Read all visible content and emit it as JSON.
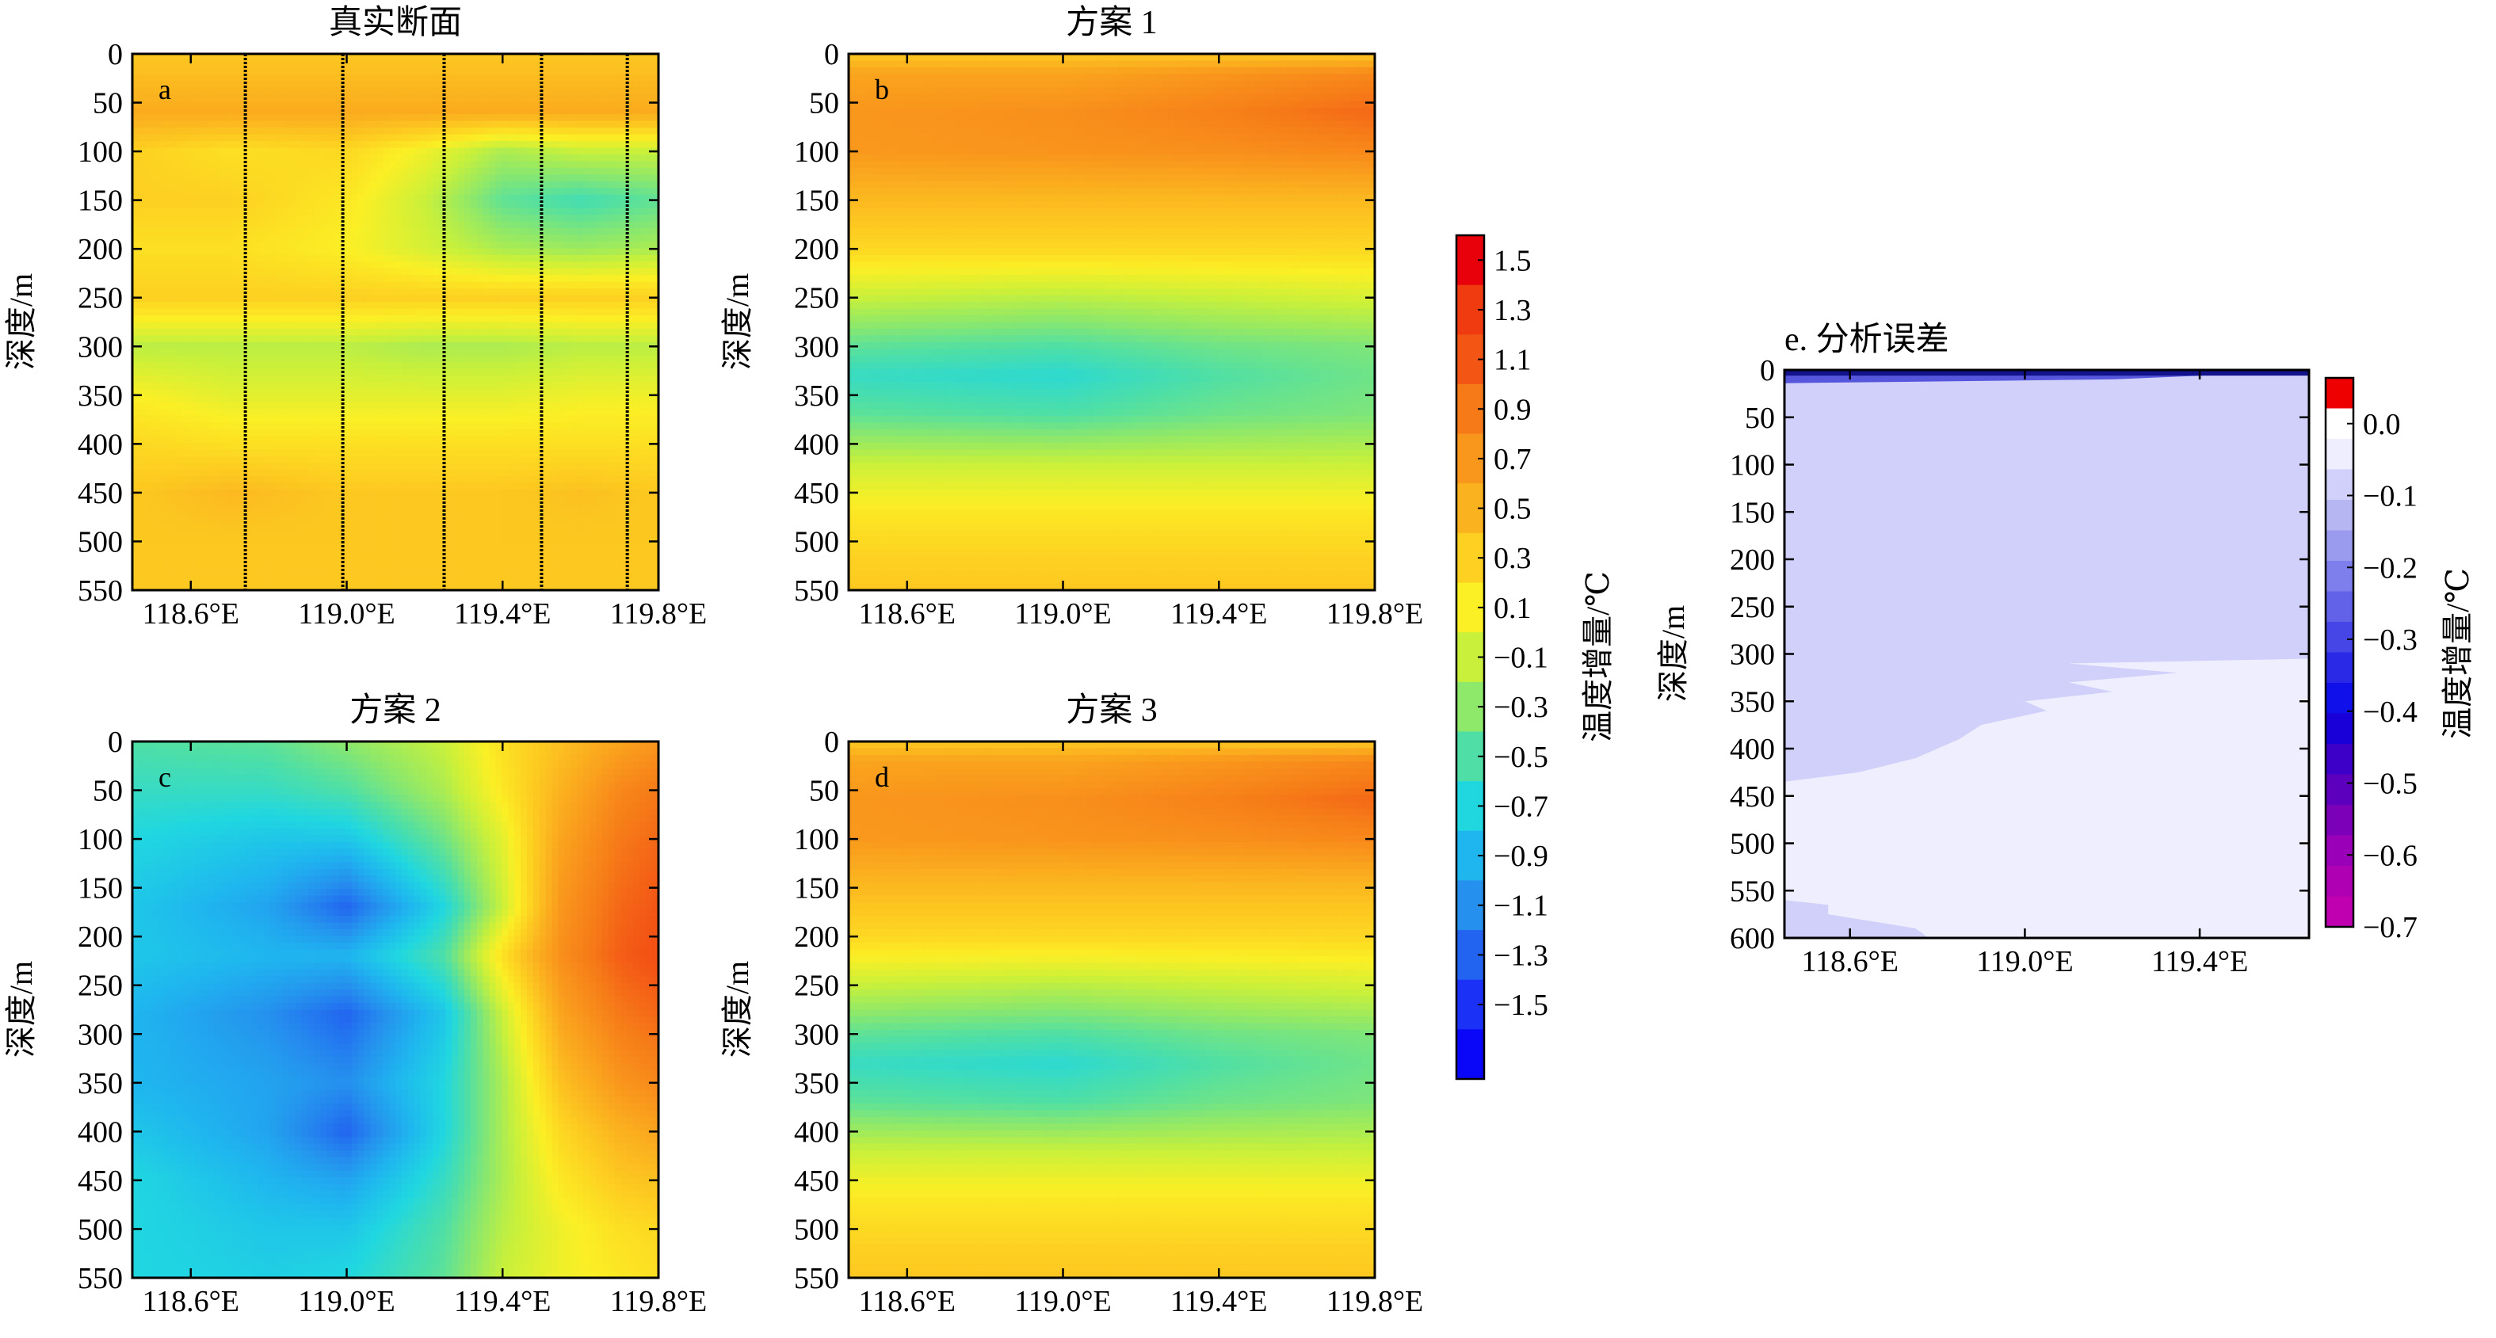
{
  "figure": {
    "colorbar_main": {
      "label": "温度增量/℃",
      "ticks": [
        "1.5",
        "1.3",
        "1.1",
        "0.9",
        "0.7",
        "0.5",
        "0.3",
        "0.1",
        "−0.1",
        "−0.3",
        "−0.5",
        "−0.7",
        "−0.9",
        "−1.1",
        "−1.3",
        "−1.5"
      ],
      "colors": [
        "#e8000b",
        "#f03a10",
        "#f35515",
        "#f67a18",
        "#f9961c",
        "#fbb21f",
        "#fdd021",
        "#fbef25",
        "#c9f03a",
        "#8ee86a",
        "#4fdfa6",
        "#20d7e0",
        "#1fb6ef",
        "#2590ee",
        "#2264f0",
        "#1b31f5",
        "#0a06f8"
      ]
    },
    "colorbar_err": {
      "label": "温度增量/℃",
      "ticks": [
        "0.0",
        "−0.1",
        "−0.2",
        "−0.3",
        "−0.4",
        "−0.5",
        "−0.6",
        "−0.7"
      ],
      "colors": [
        "#ee0000",
        "#ffffff",
        "#eeeeff",
        "#d0d0fa",
        "#b6b6f3",
        "#9a9aef",
        "#7e7eec",
        "#6262e8",
        "#4646e6",
        "#2a2ae6",
        "#1010ea",
        "#1a00d8",
        "#3c00c8",
        "#5c00be",
        "#7c00b8",
        "#9a00b8",
        "#b000b4",
        "#c000b0"
      ]
    }
  },
  "chart_data": [
    {
      "panel_letter": "a",
      "title": "真实断面",
      "type": "heatmap",
      "xlabel": "",
      "ylabel": "深度/m",
      "xlim": [
        118.45,
        119.8
      ],
      "ylim": [
        550,
        0
      ],
      "xticks": [
        "118.6°E",
        "119.0°E",
        "119.4°E",
        "119.8°E"
      ],
      "yticks": [
        "0",
        "50",
        "100",
        "150",
        "200",
        "250",
        "300",
        "350",
        "400",
        "450",
        "500",
        "550"
      ],
      "x": [
        118.45,
        118.7,
        119.0,
        119.2,
        119.4,
        119.6,
        119.8
      ],
      "depth": [
        0,
        30,
        60,
        100,
        150,
        200,
        250,
        300,
        350,
        400,
        450,
        500,
        550
      ],
      "values": [
        [
          0.45,
          0.45,
          0.45,
          0.45,
          0.45,
          0.45,
          0.45
        ],
        [
          0.55,
          0.55,
          0.55,
          0.55,
          0.55,
          0.55,
          0.55
        ],
        [
          0.65,
          0.65,
          0.65,
          0.65,
          0.65,
          0.65,
          0.65
        ],
        [
          0.4,
          0.3,
          0.35,
          0.15,
          -0.1,
          0.0,
          0.0
        ],
        [
          0.4,
          0.4,
          0.25,
          0.0,
          -0.35,
          -0.45,
          -0.35
        ],
        [
          0.3,
          0.3,
          0.2,
          0.05,
          -0.1,
          -0.15,
          -0.1
        ],
        [
          0.4,
          0.4,
          0.4,
          0.4,
          0.4,
          0.4,
          0.4
        ],
        [
          -0.05,
          -0.05,
          -0.05,
          -0.1,
          -0.1,
          -0.05,
          -0.05
        ],
        [
          0.2,
          0.1,
          0.1,
          0.1,
          0.1,
          0.15,
          0.15
        ],
        [
          0.35,
          0.3,
          0.3,
          0.3,
          0.3,
          0.3,
          0.3
        ],
        [
          0.45,
          0.55,
          0.45,
          0.45,
          0.45,
          0.5,
          0.45
        ],
        [
          0.45,
          0.45,
          0.45,
          0.45,
          0.45,
          0.45,
          0.45
        ],
        [
          0.45,
          0.45,
          0.45,
          0.45,
          0.45,
          0.45,
          0.45
        ]
      ],
      "observation_lines_lon": [
        118.74,
        118.99,
        119.25,
        119.5,
        119.72
      ]
    },
    {
      "panel_letter": "b",
      "title": "方案 1",
      "type": "heatmap",
      "xlabel": "",
      "ylabel": "深度/m",
      "xlim": [
        118.45,
        119.8
      ],
      "ylim": [
        550,
        0
      ],
      "xticks": [
        "118.6°E",
        "119.0°E",
        "119.4°E",
        "119.8°E"
      ],
      "yticks": [
        "0",
        "50",
        "100",
        "150",
        "200",
        "250",
        "300",
        "350",
        "400",
        "450",
        "500",
        "550"
      ],
      "x": [
        118.45,
        119.0,
        119.4,
        119.8
      ],
      "depth": [
        0,
        20,
        60,
        100,
        150,
        200,
        250,
        300,
        330,
        370,
        420,
        470,
        520,
        550
      ],
      "values": [
        [
          0.45,
          0.45,
          0.45,
          0.45
        ],
        [
          0.7,
          0.7,
          0.8,
          0.9
        ],
        [
          0.8,
          0.85,
          0.95,
          1.1
        ],
        [
          0.78,
          0.82,
          0.85,
          0.9
        ],
        [
          0.55,
          0.55,
          0.55,
          0.55
        ],
        [
          0.35,
          0.35,
          0.35,
          0.35
        ],
        [
          0.0,
          -0.05,
          0.0,
          0.05
        ],
        [
          -0.35,
          -0.4,
          -0.3,
          -0.25
        ],
        [
          -0.5,
          -0.55,
          -0.4,
          -0.3
        ],
        [
          -0.35,
          -0.4,
          -0.3,
          -0.25
        ],
        [
          0.0,
          0.0,
          0.0,
          0.0
        ],
        [
          0.25,
          0.25,
          0.25,
          0.25
        ],
        [
          0.4,
          0.4,
          0.4,
          0.4
        ],
        [
          0.45,
          0.45,
          0.45,
          0.45
        ]
      ]
    },
    {
      "panel_letter": "c",
      "title": "方案 2",
      "type": "heatmap",
      "xlabel": "",
      "ylabel": "深度/m",
      "xlim": [
        118.45,
        119.8
      ],
      "ylim": [
        550,
        0
      ],
      "xticks": [
        "118.6°E",
        "119.0°E",
        "119.4°E",
        "119.8°E"
      ],
      "yticks": [
        "0",
        "50",
        "100",
        "150",
        "200",
        "250",
        "300",
        "350",
        "400",
        "450",
        "500",
        "550"
      ],
      "x": [
        118.45,
        118.8,
        119.0,
        119.25,
        119.4,
        119.55,
        119.7,
        119.8
      ],
      "depth": [
        0,
        50,
        100,
        170,
        220,
        280,
        350,
        400,
        450,
        500,
        550
      ],
      "values": [
        [
          -0.4,
          -0.35,
          -0.2,
          0.0,
          0.3,
          0.5,
          0.7,
          0.8
        ],
        [
          -0.5,
          -0.5,
          -0.4,
          -0.1,
          0.25,
          0.6,
          0.9,
          1.0
        ],
        [
          -0.6,
          -0.7,
          -0.7,
          -0.3,
          0.1,
          0.7,
          1.0,
          1.1
        ],
        [
          -0.7,
          -0.9,
          -1.2,
          -0.6,
          0.0,
          0.8,
          1.1,
          1.2
        ],
        [
          -0.7,
          -0.8,
          -0.8,
          -0.4,
          0.3,
          0.85,
          1.15,
          1.25
        ],
        [
          -0.8,
          -1.0,
          -1.2,
          -0.7,
          0.0,
          0.7,
          1.0,
          1.1
        ],
        [
          -0.8,
          -0.9,
          -1.0,
          -0.6,
          -0.1,
          0.5,
          0.8,
          0.9
        ],
        [
          -0.7,
          -0.9,
          -1.2,
          -0.6,
          -0.1,
          0.35,
          0.6,
          0.7
        ],
        [
          -0.6,
          -0.8,
          -0.9,
          -0.5,
          -0.1,
          0.25,
          0.45,
          0.5
        ],
        [
          -0.6,
          -0.7,
          -0.7,
          -0.4,
          -0.05,
          0.15,
          0.3,
          0.35
        ],
        [
          -0.6,
          -0.65,
          -0.6,
          -0.35,
          0.0,
          0.15,
          0.25,
          0.3
        ]
      ]
    },
    {
      "panel_letter": "d",
      "title": "方案 3",
      "type": "heatmap",
      "xlabel": "",
      "ylabel": "深度/m",
      "xlim": [
        118.45,
        119.8
      ],
      "ylim": [
        550,
        0
      ],
      "xticks": [
        "118.6°E",
        "119.0°E",
        "119.4°E",
        "119.8°E"
      ],
      "yticks": [
        "0",
        "50",
        "100",
        "150",
        "200",
        "250",
        "300",
        "350",
        "400",
        "450",
        "500",
        "550"
      ],
      "x": [
        118.45,
        119.0,
        119.4,
        119.8
      ],
      "depth": [
        0,
        20,
        60,
        100,
        150,
        200,
        250,
        300,
        330,
        370,
        420,
        470,
        520,
        550
      ],
      "values": [
        [
          0.45,
          0.45,
          0.45,
          0.45
        ],
        [
          0.7,
          0.7,
          0.8,
          0.9
        ],
        [
          0.8,
          0.85,
          0.95,
          1.1
        ],
        [
          0.78,
          0.82,
          0.85,
          0.9
        ],
        [
          0.55,
          0.55,
          0.55,
          0.55
        ],
        [
          0.35,
          0.35,
          0.35,
          0.35
        ],
        [
          0.0,
          -0.05,
          0.0,
          0.05
        ],
        [
          -0.35,
          -0.4,
          -0.3,
          -0.25
        ],
        [
          -0.5,
          -0.55,
          -0.4,
          -0.3
        ],
        [
          -0.35,
          -0.4,
          -0.3,
          -0.25
        ],
        [
          0.0,
          0.0,
          0.0,
          0.0
        ],
        [
          0.25,
          0.25,
          0.25,
          0.25
        ],
        [
          0.4,
          0.4,
          0.4,
          0.4
        ],
        [
          0.45,
          0.45,
          0.45,
          0.45
        ]
      ]
    },
    {
      "title": "e. 分析误差",
      "type": "area",
      "xlabel": "",
      "ylabel": "深度/m",
      "xlim": [
        118.45,
        119.65
      ],
      "ylim": [
        600,
        0
      ],
      "xticks": [
        "118.6°E",
        "119.0°E",
        "119.4°E"
      ],
      "yticks": [
        "0",
        "50",
        "100",
        "150",
        "200",
        "250",
        "300",
        "350",
        "400",
        "450",
        "500",
        "550",
        "600"
      ],
      "regions": [
        {
          "value": -0.05,
          "color_index": 3,
          "description": "main negative-error band above the boundary"
        },
        {
          "value": 0.0,
          "color_index": 2,
          "description": "near-zero region below the boundary"
        }
      ],
      "boundary_lon_by_depth": [
        [
          305,
          119.65
        ],
        [
          310,
          119.1
        ],
        [
          320,
          119.35
        ],
        [
          330,
          119.1
        ],
        [
          340,
          119.2
        ],
        [
          350,
          119.0
        ],
        [
          360,
          119.05
        ],
        [
          375,
          118.9
        ],
        [
          390,
          118.85
        ],
        [
          410,
          118.75
        ],
        [
          425,
          118.62
        ],
        [
          435,
          118.45
        ]
      ],
      "bottom_patch_lon_by_depth": [
        [
          560,
          118.45
        ],
        [
          565,
          118.55
        ],
        [
          575,
          118.55
        ],
        [
          590,
          118.75
        ],
        [
          600,
          118.78
        ]
      ],
      "surface_layer": {
        "depth_max": 6,
        "value": -0.6
      },
      "surface_taper_lon_by_depth": [
        [
          2,
          119.65
        ],
        [
          6,
          119.4
        ],
        [
          10,
          119.2
        ],
        [
          14,
          118.45
        ]
      ]
    }
  ]
}
